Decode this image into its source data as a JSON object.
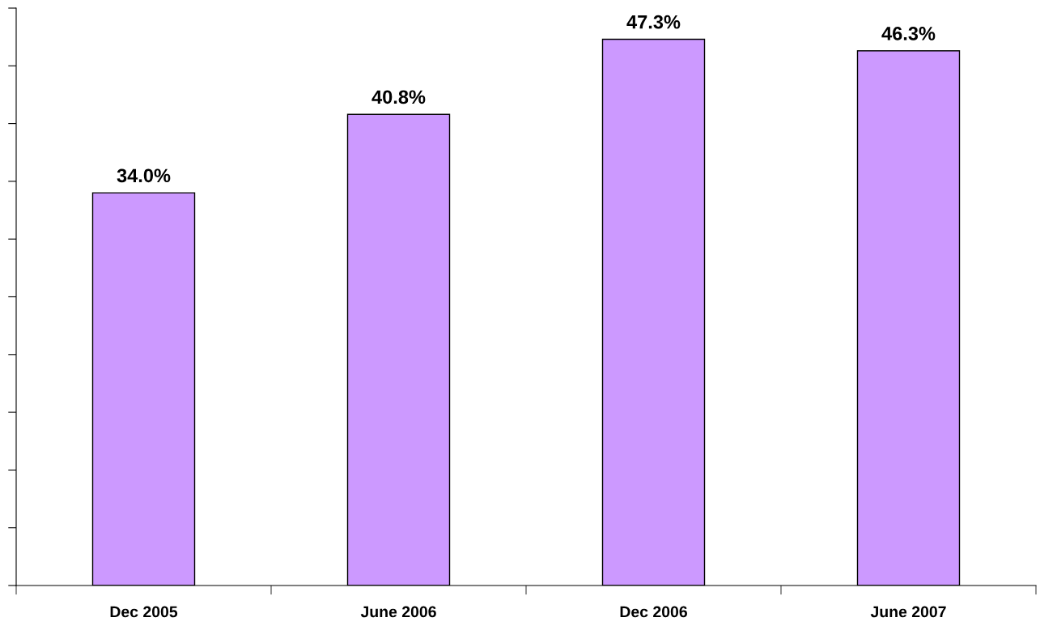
{
  "chart_data": {
    "type": "bar",
    "categories": [
      "Dec 2005",
      "June 2006",
      "Dec 2006",
      "June 2007"
    ],
    "values": [
      34.0,
      40.8,
      47.3,
      46.3
    ],
    "value_labels": [
      "34.0%",
      "40.8%",
      "47.3%",
      "46.3%"
    ],
    "color": "#cc99ff",
    "ylim": [
      0,
      50
    ],
    "yticks": [
      {
        "value": 0,
        "label": null
      },
      {
        "value": 5,
        "label": null
      },
      {
        "value": 10,
        "label": null
      },
      {
        "value": 15,
        "label": null
      },
      {
        "value": 20,
        "label": null
      },
      {
        "value": 25,
        "label": null
      },
      {
        "value": 30,
        "label": null
      },
      {
        "value": 35,
        "label": null
      },
      {
        "value": 40,
        "label": null
      },
      {
        "value": 45,
        "label": null
      },
      {
        "value": 50,
        "label": null
      }
    ],
    "tick_labels": "x",
    "grid": false,
    "legend": false
  }
}
